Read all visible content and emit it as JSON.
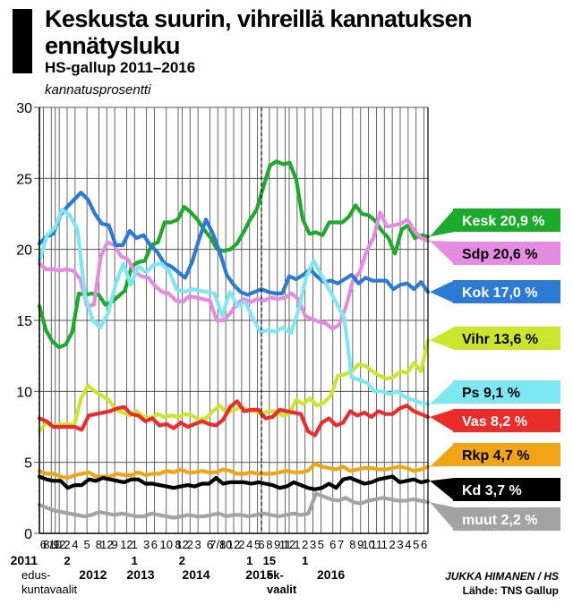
{
  "title": "Keskusta suurin, vihreillä kannatuksen ennätysluku",
  "subtitle": "HS-gallup 2011–2016",
  "ylabel": "kannatusprosentti",
  "credit": {
    "author": "JUKKA HIMANEN / HS",
    "source": "Lähde: TNS Gallup"
  },
  "chart_data": {
    "type": "line",
    "ylim": [
      0,
      30
    ],
    "yticks": [
      "0",
      "5",
      "10",
      "15",
      "20",
      "25",
      "30"
    ],
    "grid": true,
    "x_tick_labels": [
      {
        "i": 1,
        "t": "6"
      },
      {
        "i": 3,
        "t": "8/9"
      },
      {
        "i": 4,
        "t": "10"
      },
      {
        "i": 5,
        "t": "12"
      },
      {
        "i": 7,
        "t": "2"
      },
      {
        "i": 9,
        "t": "4"
      },
      {
        "i": 12,
        "t": "5"
      },
      {
        "i": 15,
        "t": "8"
      },
      {
        "i": 17,
        "t": "12"
      },
      {
        "i": 19,
        "t": "9"
      },
      {
        "i": 22,
        "t": "12"
      },
      {
        "i": 24,
        "t": "1"
      },
      {
        "i": 27,
        "t": "3"
      },
      {
        "i": 29,
        "t": "6"
      },
      {
        "i": 32,
        "t": "10"
      },
      {
        "i": 35,
        "t": "8"
      },
      {
        "i": 36,
        "t": "12"
      },
      {
        "i": 38,
        "t": "2"
      },
      {
        "i": 40,
        "t": "3"
      },
      {
        "i": 43,
        "t": "6"
      },
      {
        "i": 45,
        "t": "7/8"
      },
      {
        "i": 47,
        "t": "10"
      },
      {
        "i": 49,
        "t": "12"
      },
      {
        "i": 51,
        "t": "2"
      },
      {
        "i": 53,
        "t": "4"
      },
      {
        "i": 55,
        "t": "5"
      },
      {
        "i": 56,
        "t": "6"
      },
      {
        "i": 58,
        "t": "8"
      },
      {
        "i": 60,
        "t": "9"
      },
      {
        "i": 62,
        "t": "11"
      },
      {
        "i": 63,
        "t": "12"
      },
      {
        "i": 65,
        "t": "1"
      },
      {
        "i": 67,
        "t": "2"
      },
      {
        "i": 69,
        "t": "3"
      },
      {
        "i": 71,
        "t": "5"
      },
      {
        "i": 74,
        "t": "6"
      },
      {
        "i": 76,
        "t": "7"
      },
      {
        "i": 79,
        "t": "8"
      },
      {
        "i": 81,
        "t": "9"
      },
      {
        "i": 83,
        "t": "10"
      },
      {
        "i": 85,
        "t": "11"
      },
      {
        "i": 87,
        "t": "1"
      },
      {
        "i": 89,
        "t": "2"
      },
      {
        "i": 91,
        "t": "3"
      },
      {
        "i": 93,
        "t": "4"
      },
      {
        "i": 95,
        "t": "5"
      },
      {
        "i": 97,
        "t": "6"
      }
    ],
    "year_labels": [
      {
        "i": 0,
        "t": "2011"
      },
      {
        "i": 10,
        "t": "2012"
      },
      {
        "i": 22,
        "t": "2013"
      },
      {
        "i": 36,
        "t": "2014"
      },
      {
        "i": 52,
        "t": "2015"
      },
      {
        "i": 70,
        "t": "2016"
      }
    ],
    "event_labels": [
      {
        "i": 0,
        "lines": [
          "edus-",
          "kuntavaalit"
        ]
      },
      {
        "i": 56,
        "lines": [
          "ek-",
          "vaalit"
        ]
      }
    ],
    "bottom_bold_labels": [
      {
        "i": 7,
        "t": "2"
      },
      {
        "i": 24,
        "t": "1"
      },
      {
        "i": 36,
        "t": "2"
      },
      {
        "i": 53,
        "t": "1"
      },
      {
        "i": 58,
        "t": "15"
      },
      {
        "i": 67,
        "t": "1"
      }
    ],
    "election_markers": [
      0,
      56
    ],
    "series": [
      {
        "name": "Kesk",
        "label": "Kesk 20,9 %",
        "color": "#1aab2a",
        "values": [
          16.0,
          14.3,
          13.5,
          13.1,
          13.3,
          14.2,
          16.9,
          16.8,
          16.9,
          16.8,
          16.1,
          16.3,
          16.7,
          17.1,
          18.8,
          19.1,
          19.2,
          20.3,
          20.5,
          21.9,
          21.9,
          22.1,
          23.0,
          22.6,
          22.1,
          21.4,
          20.8,
          20.0,
          19.9,
          20.0,
          20.4,
          21.2,
          22.1,
          22.8,
          24.4,
          25.9,
          26.2,
          26.0,
          26.1,
          24.9,
          22.1,
          21.1,
          21.2,
          21.0,
          21.9,
          21.9,
          21.9,
          22.3,
          23.1,
          22.5,
          22.4,
          22.0,
          21.3,
          20.8,
          19.7,
          21.4,
          21.7,
          20.8,
          21.0,
          20.9
        ]
      },
      {
        "name": "Sdp",
        "label": "Sdp 20,6 %",
        "color": "#e58be2",
        "values": [
          19.0,
          18.6,
          18.6,
          18.5,
          18.6,
          18.5,
          17.9,
          16.0,
          16.1,
          19.5,
          20.5,
          20.3,
          19.5,
          19.3,
          18.4,
          18.1,
          18.0,
          17.4,
          17.0,
          16.9,
          16.4,
          16.3,
          16.7,
          16.6,
          16.5,
          16.4,
          15.0,
          15.0,
          15.5,
          16.2,
          16.5,
          16.3,
          16.5,
          16.4,
          16.6,
          16.5,
          16.6,
          16.9,
          16.5,
          15.3,
          15.1,
          14.9,
          14.8,
          14.4,
          14.7,
          16.0,
          17.8,
          18.4,
          19.9,
          20.8,
          22.6,
          21.6,
          21.7,
          21.8,
          22.1,
          21.3,
          20.8,
          20.6
        ]
      },
      {
        "name": "Kok",
        "label": "Kok 17,0 %",
        "color": "#2b7ad6",
        "values": [
          20.4,
          20.9,
          21.1,
          22.4,
          23.0,
          23.5,
          24.0,
          23.5,
          22.5,
          21.8,
          21.7,
          20.3,
          20.3,
          21.3,
          20.8,
          21.0,
          20.3,
          19.8,
          19.0,
          18.8,
          18.4,
          18.0,
          19.1,
          20.7,
          22.1,
          21.1,
          19.8,
          18.2,
          17.5,
          17.0,
          16.8,
          17.0,
          17.2,
          17.0,
          16.9,
          16.9,
          18.1,
          17.9,
          18.2,
          18.6,
          18.1,
          17.7,
          17.8,
          17.6,
          17.9,
          18.2,
          17.6,
          18.0,
          17.8,
          17.8,
          17.8,
          17.2,
          17.5,
          17.6,
          17.2,
          17.7,
          17.0
        ]
      },
      {
        "name": "Vihr",
        "label": "Vihr 13,6 %",
        "color": "#cce62c",
        "values": [
          7.2,
          7.8,
          7.5,
          7.7,
          7.7,
          7.6,
          9.5,
          10.4,
          10.0,
          9.7,
          9.4,
          8.7,
          8.5,
          8.3,
          8.6,
          8.2,
          8.1,
          8.4,
          8.2,
          8.3,
          8.2,
          8.4,
          8.3,
          8.0,
          8.1,
          8.6,
          9.0,
          8.5,
          8.7,
          8.9,
          8.7,
          8.6,
          8.4,
          8.6,
          8.6,
          8.3,
          8.4,
          9.4,
          9.1,
          9.5,
          9.0,
          9.2,
          9.7,
          11.1,
          11.2,
          11.4,
          11.9,
          11.8,
          11.4,
          11.1,
          10.9,
          11.0,
          11.4,
          11.3,
          12.0,
          11.4,
          13.6
        ]
      },
      {
        "name": "Ps",
        "label": "Ps 9,1 %",
        "color": "#7ee8f2",
        "values": [
          19.2,
          21.0,
          21.5,
          22.8,
          22.4,
          21.4,
          16.7,
          15.0,
          14.5,
          15.5,
          17.5,
          19.0,
          17.5,
          18.8,
          18.4,
          18.9,
          19.0,
          18.5,
          17.2,
          17.0,
          17.2,
          17.1,
          17.0,
          16.9,
          15.3,
          17.0,
          16.0,
          16.3,
          15.2,
          14.2,
          14.3,
          14.2,
          14.5,
          14.1,
          15.7,
          18.0,
          19.2,
          18.2,
          17.2,
          16.2,
          15.2,
          11.0,
          10.8,
          10.6,
          10.0,
          10.0,
          9.8,
          10.0,
          9.6,
          9.4,
          9.2,
          9.1
        ]
      },
      {
        "name": "Vas",
        "label": "Vas 8,2 %",
        "color": "#ee2b2b",
        "values": [
          8.1,
          7.9,
          7.5,
          7.5,
          7.5,
          7.5,
          7.3,
          8.3,
          8.4,
          8.5,
          8.6,
          8.8,
          8.9,
          8.4,
          8.3,
          7.9,
          8.1,
          7.6,
          7.7,
          7.4,
          7.8,
          7.5,
          7.7,
          7.9,
          7.7,
          7.6,
          8.0,
          8.9,
          9.3,
          8.6,
          8.7,
          8.7,
          8.1,
          8.2,
          8.7,
          8.6,
          8.5,
          8.4,
          7.2,
          6.9,
          7.8,
          8.1,
          7.6,
          7.8,
          8.6,
          8.3,
          8.5,
          8.2,
          8.6,
          8.4,
          8.4,
          8.8,
          9.0,
          8.6,
          8.4,
          8.2
        ]
      },
      {
        "name": "Rkp",
        "label": "Rkp 4,7 %",
        "color": "#f2a514",
        "values": [
          4.4,
          4.2,
          4.2,
          4.0,
          3.9,
          4.1,
          4.2,
          4.3,
          4.0,
          4.0,
          4.0,
          4.2,
          4.1,
          4.1,
          4.3,
          4.1,
          4.2,
          4.2,
          4.4,
          4.3,
          4.5,
          4.3,
          4.3,
          4.4,
          4.3,
          4.3,
          4.5,
          4.4,
          4.2,
          4.2,
          4.3,
          4.2,
          4.2,
          4.2,
          4.3,
          4.4,
          4.3,
          4.3,
          4.4,
          4.9,
          4.7,
          4.6,
          4.5,
          4.7,
          4.4,
          4.5,
          4.6,
          4.6,
          4.5,
          4.5,
          4.6,
          4.7,
          4.6,
          4.4,
          4.5,
          4.7
        ]
      },
      {
        "name": "Kd",
        "label": "Kd 3,7 %",
        "color": "#000000",
        "values": [
          4.0,
          3.8,
          3.7,
          3.7,
          3.2,
          3.4,
          3.4,
          3.8,
          3.7,
          3.9,
          3.8,
          3.7,
          3.6,
          3.8,
          3.8,
          3.5,
          3.5,
          3.4,
          3.3,
          3.2,
          3.3,
          3.4,
          3.3,
          3.5,
          3.5,
          3.9,
          3.5,
          3.6,
          3.6,
          3.6,
          3.5,
          3.6,
          3.5,
          3.4,
          3.2,
          3.3,
          3.6,
          3.4,
          3.2,
          3.1,
          3.2,
          3.5,
          3.2,
          3.8,
          3.9,
          3.7,
          3.5,
          3.6,
          3.8,
          3.9,
          4.0,
          3.6,
          3.7,
          3.8,
          3.6,
          3.7
        ]
      },
      {
        "name": "muut",
        "label": "muut 2,2 %",
        "color": "#a3a3a3",
        "values": [
          2.0,
          1.8,
          1.6,
          1.5,
          1.4,
          1.3,
          1.2,
          1.3,
          1.5,
          1.4,
          1.3,
          1.4,
          1.3,
          1.2,
          1.2,
          1.4,
          1.3,
          1.2,
          1.1,
          1.2,
          1.3,
          1.2,
          1.2,
          1.3,
          1.4,
          1.2,
          1.3,
          1.3,
          1.2,
          1.3,
          1.4,
          1.3,
          1.2,
          1.3,
          1.4,
          1.3,
          1.4,
          2.8,
          2.6,
          2.4,
          2.3,
          2.5,
          2.2,
          2.1,
          2.3,
          2.4,
          2.5,
          2.4,
          2.3,
          2.3,
          2.4,
          2.3,
          2.2
        ]
      }
    ]
  }
}
